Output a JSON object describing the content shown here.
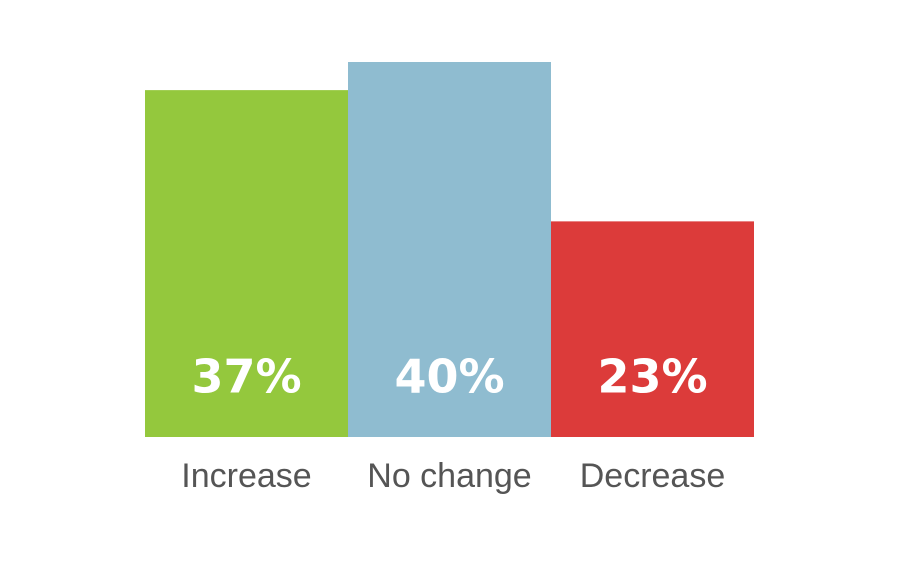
{
  "chart_data": {
    "type": "bar",
    "categories": [
      "Increase",
      "No change",
      "Decrease"
    ],
    "values": [
      37,
      40,
      23
    ],
    "value_labels": [
      "37%",
      "40%",
      "23%"
    ],
    "colors": [
      "#94c83d",
      "#8fbcd0",
      "#dc3b3a"
    ]
  }
}
